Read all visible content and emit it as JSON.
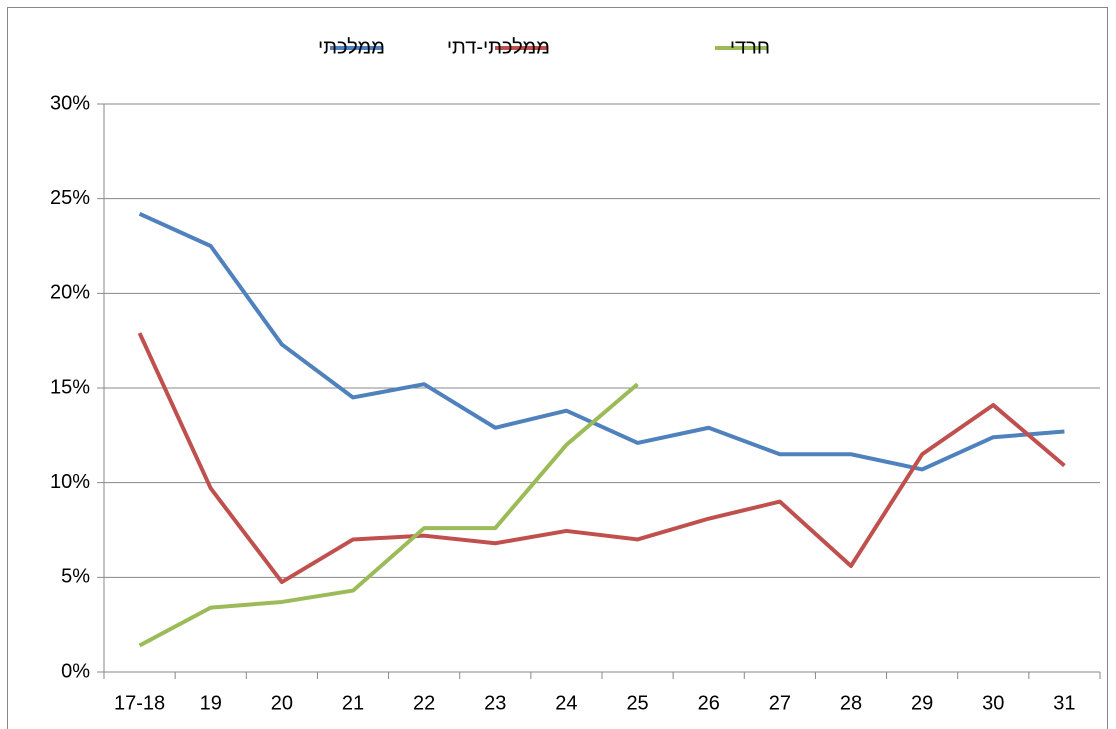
{
  "chart_data": {
    "type": "line",
    "categories": [
      "17-18",
      "19",
      "20",
      "21",
      "22",
      "23",
      "24",
      "25",
      "26",
      "27",
      "28",
      "29",
      "30",
      "31"
    ],
    "series": [
      {
        "name": "ממלכתי",
        "color": "#4f81bd",
        "values": [
          24.2,
          22.5,
          17.3,
          14.5,
          15.2,
          12.9,
          13.8,
          12.1,
          12.9,
          11.5,
          11.5,
          10.7,
          12.4,
          12.7
        ]
      },
      {
        "name": "ממלכתי-דתי",
        "color": "#c0504d",
        "values": [
          17.9,
          9.7,
          4.75,
          7.0,
          7.2,
          6.8,
          7.45,
          7.0,
          8.1,
          9.0,
          5.6,
          11.5,
          14.1,
          10.9
        ]
      },
      {
        "name": "חרדי",
        "color": "#9bbb59",
        "values": [
          1.4,
          3.4,
          3.7,
          4.3,
          7.6,
          7.6,
          12.0,
          15.2,
          null,
          null,
          null,
          null,
          null,
          null
        ]
      }
    ],
    "ylim": [
      0,
      30
    ],
    "yticks": [
      {
        "value": 0,
        "label": "0%"
      },
      {
        "value": 5,
        "label": "5%"
      },
      {
        "value": 10,
        "label": "10%"
      },
      {
        "value": 15,
        "label": "15%"
      },
      {
        "value": 20,
        "label": "20%"
      },
      {
        "value": 25,
        "label": "25%"
      },
      {
        "value": 30,
        "label": "30%"
      }
    ],
    "grid": true,
    "legend": "top"
  }
}
